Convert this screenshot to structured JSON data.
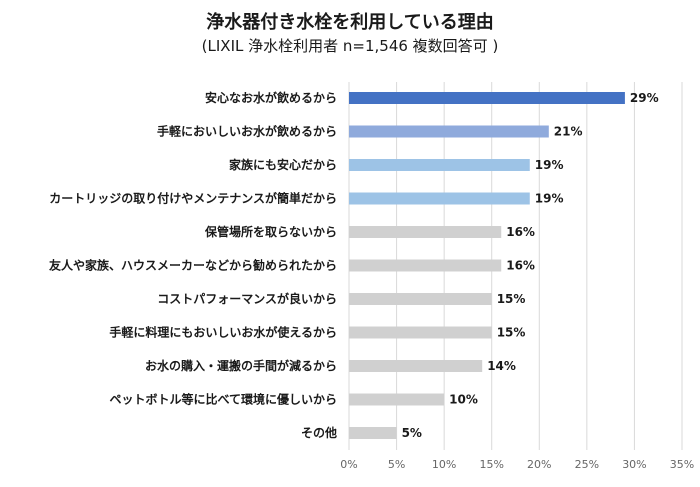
{
  "chart_data": {
    "type": "bar",
    "orientation": "horizontal",
    "title": "浄水器付き水栓を利用している理由",
    "subtitle": "(LIXIL 浄水栓利用者 n=1,546 複数回答可 )",
    "categories": [
      "安心なお水が飲めるから",
      "手軽においしいお水が飲めるから",
      "家族にも安心だから",
      "カートリッジの取り付けやメンテナンスが簡単だから",
      "保管場所を取らないから",
      "友人や家族、ハウスメーカーなどから勧められたから",
      "コストパフォーマンスが良いから",
      "手軽に料理にもおいしいお水が使えるから",
      "お水の購入・運搬の手間が減るから",
      "ペットボトル等に比べて環境に優しいから",
      "その他"
    ],
    "values": [
      29,
      21,
      19,
      19,
      16,
      16,
      15,
      15,
      14,
      10,
      5
    ],
    "value_labels": [
      "29%",
      "21%",
      "19%",
      "19%",
      "16%",
      "16%",
      "15%",
      "15%",
      "14%",
      "10%",
      "5%"
    ],
    "colors": [
      "#4472c4",
      "#8faadc",
      "#9dc3e6",
      "#9dc3e6",
      "#d0d0d0",
      "#d0d0d0",
      "#d0d0d0",
      "#d0d0d0",
      "#d0d0d0",
      "#d0d0d0",
      "#d0d0d0"
    ],
    "xlim": [
      0,
      35
    ],
    "xticks": [
      "0%",
      "5%",
      "10%",
      "15%",
      "20%",
      "25%",
      "30%",
      "35%"
    ],
    "grid": true
  }
}
